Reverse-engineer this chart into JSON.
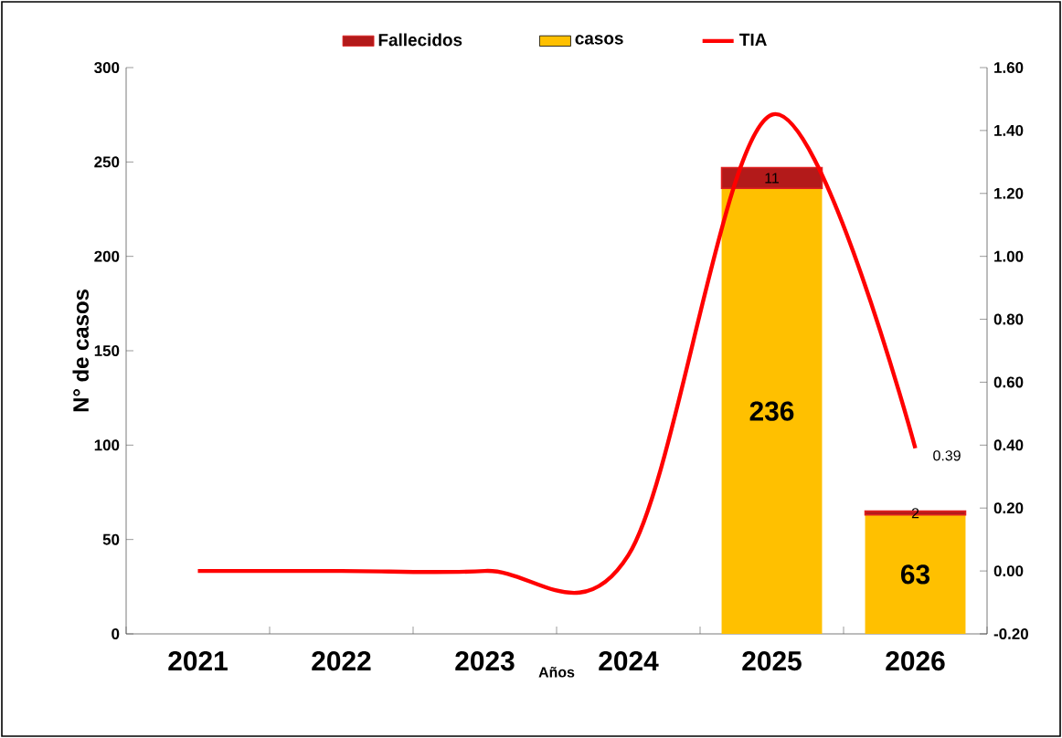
{
  "chart_data": {
    "type": "bar",
    "xlabel": "Años",
    "ylabel": "N° de casos",
    "categories": [
      "2021",
      "2022",
      "2023",
      "2024",
      "2025",
      "2026"
    ],
    "stacked": true,
    "series": [
      {
        "name": "casos",
        "color": "#ffc000",
        "values": [
          null,
          null,
          null,
          null,
          236,
          63
        ],
        "value_labels": [
          null,
          null,
          null,
          null,
          "236",
          "63"
        ]
      },
      {
        "name": "Fallecidos",
        "color": "#e02020",
        "values": [
          null,
          null,
          null,
          null,
          11,
          2
        ],
        "value_labels": [
          null,
          null,
          null,
          null,
          "11",
          "2"
        ]
      },
      {
        "name": "TIA",
        "type": "line",
        "axis": "y2",
        "color": "#ff0000",
        "values": [
          0,
          0,
          0,
          0.05,
          1.45,
          0.39
        ],
        "value_labels": [
          null,
          null,
          null,
          null,
          null,
          "0.39"
        ]
      }
    ],
    "ylim": [
      0,
      300
    ],
    "yticks": [
      0,
      50,
      100,
      150,
      200,
      250,
      300
    ],
    "y2lim": [
      -0.2,
      1.6
    ],
    "y2ticks": [
      {
        "value": -0.2,
        "label": "-0.20"
      },
      {
        "value": 0,
        "label": "0.00"
      },
      {
        "value": 0.2,
        "label": "0.20"
      },
      {
        "value": 0.4,
        "label": "0.40"
      },
      {
        "value": 0.6,
        "label": "0.60"
      },
      {
        "value": 0.8,
        "label": "0.80"
      },
      {
        "value": 1.0,
        "label": "1.00"
      },
      {
        "value": 1.2,
        "label": "1.20"
      },
      {
        "value": 1.4,
        "label": "1.40"
      },
      {
        "value": 1.6,
        "label": "1.60"
      }
    ],
    "grid": false,
    "legend": "top",
    "marker": "none",
    "line_style": "solid"
  }
}
